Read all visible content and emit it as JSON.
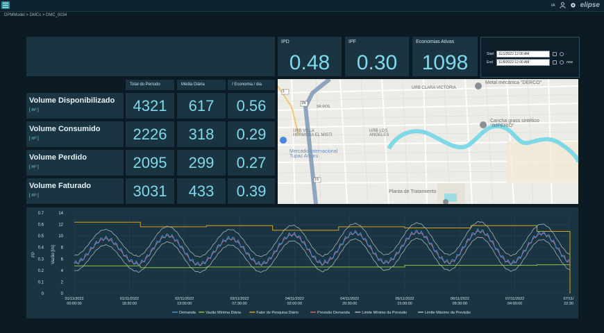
{
  "breadcrumb": [
    "DPMModel",
    "DMCs",
    "DMC_0034"
  ],
  "header": {
    "user": "sk",
    "logo": "elipse"
  },
  "kpis": [
    {
      "label": "IPD",
      "value": "0.48"
    },
    {
      "label": "IPF",
      "value": "0.30"
    },
    {
      "label": "Economias Ativas",
      "value": "1098"
    }
  ],
  "dates": {
    "start_label": "Start",
    "start_value": "11/1/2022 12:00 AM",
    "end_label": "End",
    "end_value": "11/8/2022 12:00 AM",
    "now_label": "now"
  },
  "table": {
    "columns": [
      "Total do Período",
      "Média Diária",
      "/ Economia / dia"
    ],
    "rows": [
      {
        "label": "Volume Disponibilizado",
        "unit": "[ m³ ]",
        "total": "4321",
        "media": "617",
        "economia": "0.56"
      },
      {
        "label": "Volume Consumido",
        "unit": "[ m³ ]",
        "total": "2226",
        "media": "318",
        "economia": "0.29"
      },
      {
        "label": "Volume Perdido",
        "unit": "[ m³ ]",
        "total": "2095",
        "media": "299",
        "economia": "0.27"
      },
      {
        "label": "Volume Faturado",
        "unit": "[ m³ ]",
        "total": "3031",
        "media": "433",
        "economia": "0.39"
      }
    ]
  },
  "map": {
    "labels": [
      "URB CLARA VICTORIA",
      "URB VILLA HERMOSA EL MISTI",
      "URB LOS ANGELES",
      "Metal mecánica \"DERCO\"",
      "Cancha grass sintético \"IMPERIO\"",
      "Mercado Internacional Tupac Amaru",
      "Planta de Tratamiento"
    ],
    "road_labels": [
      "1",
      "1N",
      "1S",
      "1S",
      "SR ROS"
    ]
  },
  "chart_data": {
    "type": "line",
    "y_left_label": "FP",
    "y_right_label": "Vazão [l/s]",
    "y_left_ticks": [
      "0",
      "0.1",
      "0.2",
      "0.3",
      "0.4",
      "0.5",
      "0.6",
      "0.7"
    ],
    "y_right_ticks": [
      "0",
      "2",
      "4",
      "6",
      "8",
      "10",
      "12",
      "14"
    ],
    "y_right_range": [
      0,
      14
    ],
    "x_ticks": [
      [
        "01/11/2022",
        "00:00:00"
      ],
      [
        "01/11/2022",
        "18:30:00"
      ],
      [
        "02/11/2022",
        "13:00:00"
      ],
      [
        "03/11/2022",
        "07:30:00"
      ],
      [
        "04/11/2022",
        "02:00:00"
      ],
      [
        "04/11/2022",
        "20:30:00"
      ],
      [
        "05/11/2022",
        "15:00:00"
      ],
      [
        "06/11/2022",
        "09:30:00"
      ],
      [
        "07/11/2022",
        "04:00:00"
      ],
      [
        "07/11/",
        "22:30"
      ]
    ],
    "series": [
      {
        "name": "Demanda",
        "color": "#4a8fd9"
      },
      {
        "name": "Vazão Mínima Diária",
        "color": "#8fc63f"
      },
      {
        "name": "Fator de Pesquisa Diário",
        "color": "#d6a419"
      },
      {
        "name": "Previsão Demanda",
        "color": "#e05a5a"
      },
      {
        "name": "Limite Mínimo da Previsão",
        "color": "#a9b4bb"
      },
      {
        "name": "Limite Máximo da Previsão",
        "color": "#a9b4bb"
      }
    ],
    "fp_steps": [
      0.62,
      0.62,
      0.58,
      0.58,
      0.59,
      0.59,
      0.55,
      0.55,
      0.58,
      0.58,
      0.57,
      0.57,
      0.59,
      0.59,
      0.54
    ],
    "vmin_steps": [
      4.8,
      4.8,
      4.5,
      4.5,
      4.6,
      4.6,
      4.6,
      4.6,
      4.6,
      4.6,
      4.9,
      4.9,
      4.9,
      4.9,
      5.0
    ],
    "daily_peaks": [
      9.5,
      10.0,
      9.5,
      10.2,
      10.5,
      10.6,
      10.8,
      10.4,
      10.4
    ],
    "daily_troughs": [
      5.2,
      5.0,
      5.0,
      5.1,
      5.3,
      5.4,
      5.3,
      5.2,
      5.0
    ]
  }
}
